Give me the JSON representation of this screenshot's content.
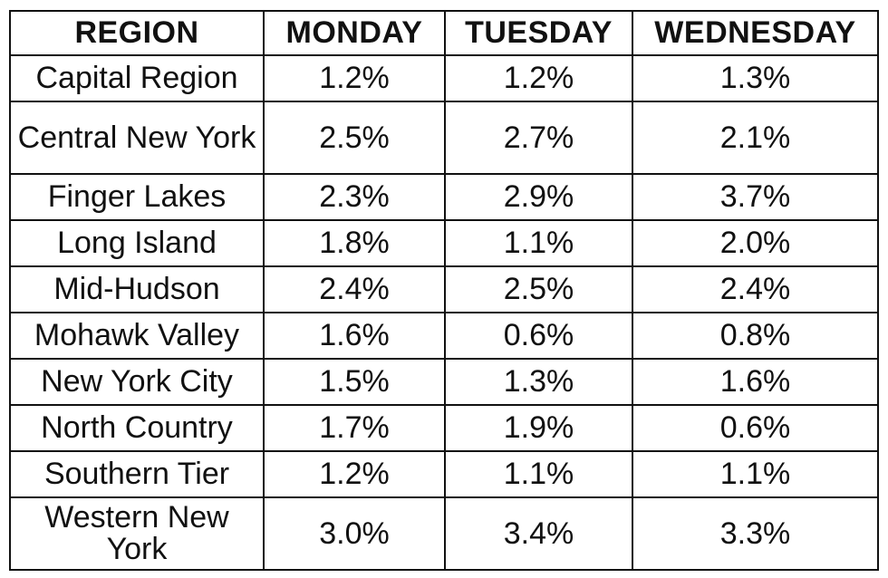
{
  "chart_data": {
    "type": "table",
    "columns": [
      "REGION",
      "MONDAY",
      "TUESDAY",
      "WEDNESDAY"
    ],
    "rows": [
      [
        "Capital Region",
        "1.2%",
        "1.2%",
        "1.3%"
      ],
      [
        "Central New York",
        "2.5%",
        "2.7%",
        "2.1%"
      ],
      [
        "Finger Lakes",
        "2.3%",
        "2.9%",
        "3.7%"
      ],
      [
        "Long Island",
        "1.8%",
        "1.1%",
        "2.0%"
      ],
      [
        "Mid-Hudson",
        "2.4%",
        "2.5%",
        "2.4%"
      ],
      [
        "Mohawk Valley",
        "1.6%",
        "0.6%",
        "0.8%"
      ],
      [
        "New York City",
        "1.5%",
        "1.3%",
        "1.6%"
      ],
      [
        "North Country",
        "1.7%",
        "1.9%",
        "0.6%"
      ],
      [
        "Southern Tier",
        "1.2%",
        "1.1%",
        "1.1%"
      ],
      [
        "Western New York",
        "3.0%",
        "3.4%",
        "3.3%"
      ]
    ]
  }
}
